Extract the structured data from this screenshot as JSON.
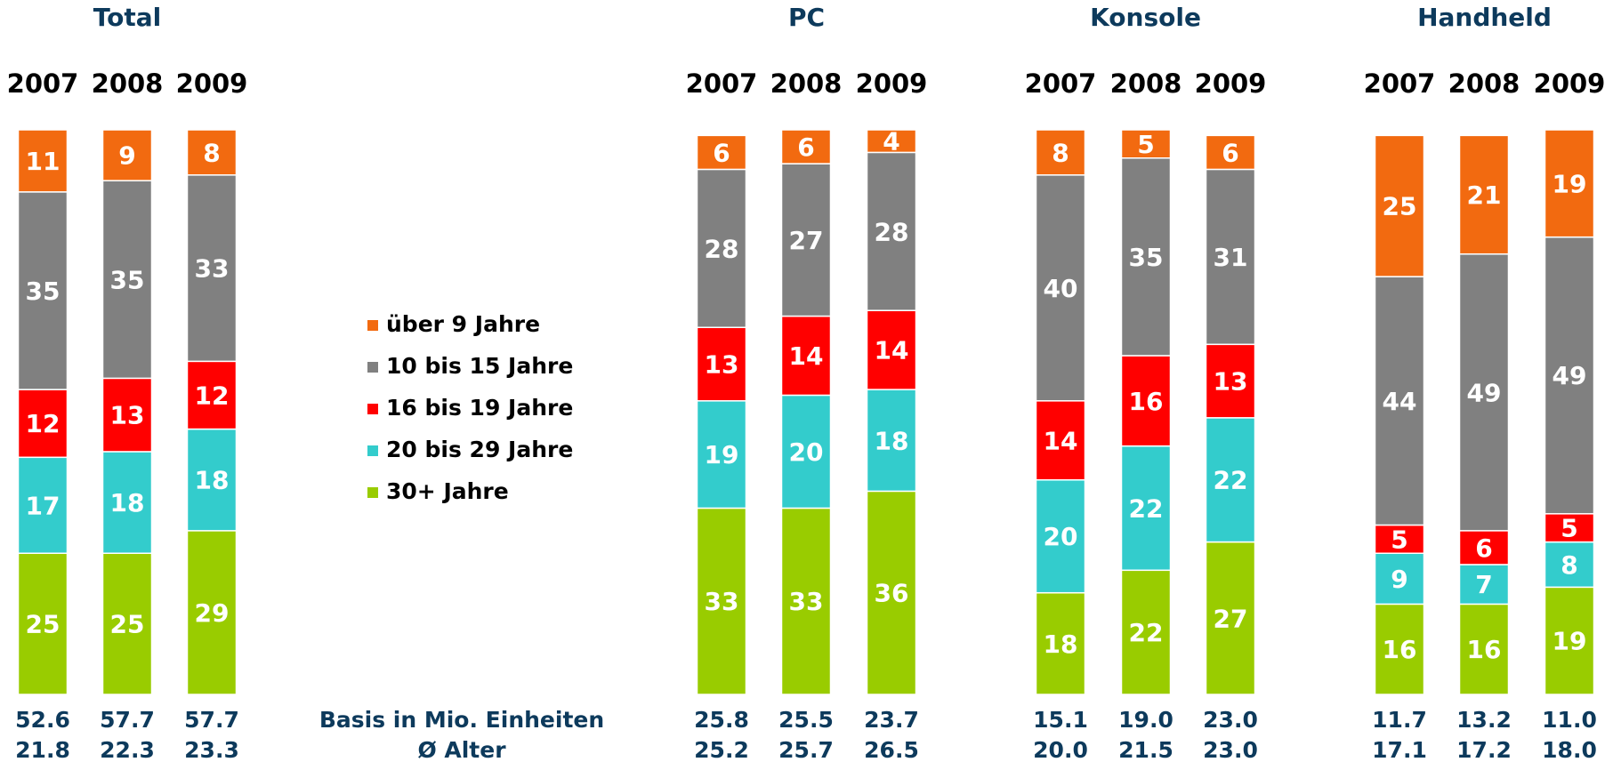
{
  "chart_data": [
    {
      "type": "bar",
      "stacked": true,
      "title": "Total",
      "categories": [
        "2007",
        "2008",
        "2009"
      ],
      "ylim": [
        0,
        100
      ],
      "series": [
        {
          "values": [
            11,
            9,
            8
          ]
        },
        {
          "values": [
            35,
            35,
            33
          ]
        },
        {
          "values": [
            12,
            13,
            12
          ]
        },
        {
          "values": [
            17,
            18,
            18
          ]
        },
        {
          "values": [
            25,
            25,
            29
          ]
        }
      ],
      "basis": [
        52.6,
        57.7,
        57.7
      ],
      "age": [
        21.8,
        22.3,
        23.3
      ]
    },
    {
      "type": "bar",
      "stacked": true,
      "title": "PC",
      "categories": [
        "2007",
        "2008",
        "2009"
      ],
      "ylim": [
        0,
        100
      ],
      "series": [
        {
          "values": [
            6,
            6,
            4
          ]
        },
        {
          "values": [
            28,
            27,
            28
          ]
        },
        {
          "values": [
            13,
            14,
            14
          ]
        },
        {
          "values": [
            19,
            20,
            18
          ]
        },
        {
          "values": [
            33,
            33,
            36
          ]
        }
      ],
      "basis": [
        25.8,
        25.5,
        23.7
      ],
      "age": [
        25.2,
        25.7,
        26.5
      ]
    },
    {
      "type": "bar",
      "stacked": true,
      "title": "Konsole",
      "categories": [
        "2007",
        "2008",
        "2009"
      ],
      "ylim": [
        0,
        100
      ],
      "series": [
        {
          "values": [
            8,
            5,
            6
          ]
        },
        {
          "values": [
            40,
            35,
            31
          ]
        },
        {
          "values": [
            14,
            16,
            13
          ]
        },
        {
          "values": [
            20,
            22,
            22
          ]
        },
        {
          "values": [
            18,
            22,
            27
          ]
        }
      ],
      "basis": [
        15.1,
        19.0,
        23.0
      ],
      "basis_labels": [
        "15.1",
        "19.0",
        "23.0"
      ],
      "age": [
        20.0,
        21.5,
        23.0
      ],
      "age_labels": [
        "20.0",
        "21.5",
        "23.0"
      ]
    },
    {
      "type": "bar",
      "stacked": true,
      "title": "Handheld",
      "categories": [
        "2007",
        "2008",
        "2009"
      ],
      "ylim": [
        0,
        100
      ],
      "series": [
        {
          "values": [
            25,
            21,
            19
          ]
        },
        {
          "values": [
            44,
            49,
            49
          ]
        },
        {
          "values": [
            5,
            6,
            5
          ]
        },
        {
          "values": [
            9,
            7,
            8
          ]
        },
        {
          "values": [
            16,
            16,
            19
          ]
        }
      ],
      "basis": [
        11.7,
        13.2,
        11.0
      ],
      "basis_labels": [
        "11.7",
        "13.2",
        "11.0"
      ],
      "age": [
        17.1,
        17.2,
        18.0
      ],
      "age_labels": [
        "17.1",
        "17.2",
        "18.0"
      ]
    }
  ],
  "legend": {
    "items": [
      {
        "name": "über 9 Jahre",
        "color": "#f26a10"
      },
      {
        "name": "10 bis 15 Jahre",
        "color": "#808080"
      },
      {
        "name": "16 bis 19 Jahre",
        "color": "#ff0000"
      },
      {
        "name": "20 bis 29 Jahre",
        "color": "#33cccc"
      },
      {
        "name": "30+ Jahre",
        "color": "#99cc00"
      }
    ]
  },
  "row_labels": {
    "basis": "Basis in Mio. Einheiten",
    "age": "Ø Alter"
  }
}
